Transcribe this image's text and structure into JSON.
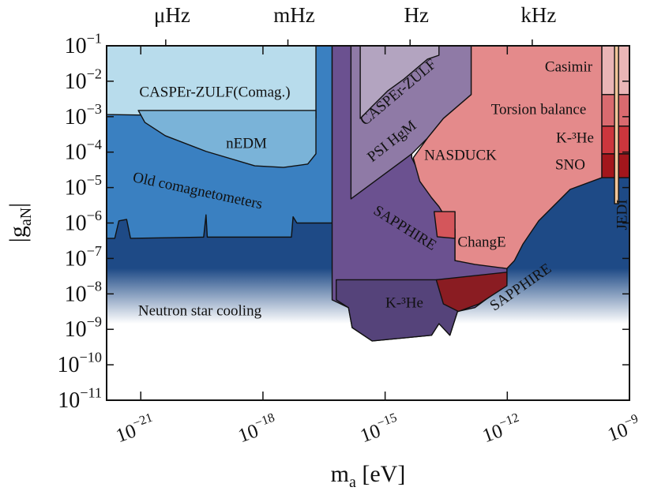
{
  "chart_data": {
    "type": "area",
    "x_label": "ma [eV]",
    "y_label": "|gaN|",
    "xscale": "log",
    "yscale": "log",
    "xlim": [
      1.45e-22,
      1e-09
    ],
    "ylim": [
      1e-11,
      0.1
    ],
    "xticks": [
      {
        "value": 1e-21,
        "label": "10−21"
      },
      {
        "value": 1e-18,
        "label": "10−18"
      },
      {
        "value": 1e-15,
        "label": "10−15"
      },
      {
        "value": 1e-12,
        "label": "10−12"
      },
      {
        "value": 1e-09,
        "label": "10−9"
      }
    ],
    "x2ticks": [
      {
        "value": 4.1e-21,
        "label": "μHz"
      },
      {
        "value": 4.1e-18,
        "label": "mHz"
      },
      {
        "value": 4.1e-15,
        "label": "Hz"
      },
      {
        "value": 4.1e-12,
        "label": "kHz"
      }
    ],
    "yticks": [
      {
        "value": 0.1,
        "label": "10−1"
      },
      {
        "value": 0.01,
        "label": "10−2"
      },
      {
        "value": 0.001,
        "label": "10−3"
      },
      {
        "value": 0.0001,
        "label": "10−4"
      },
      {
        "value": 1e-05,
        "label": "10−5"
      },
      {
        "value": 1e-06,
        "label": "10−6"
      },
      {
        "value": 1e-07,
        "label": "10−7"
      },
      {
        "value": 1e-08,
        "label": "10−8"
      },
      {
        "value": 1e-09,
        "label": "10−9"
      },
      {
        "value": 1e-10,
        "label": "10−10"
      },
      {
        "value": 1e-11,
        "label": "10−11"
      }
    ],
    "regions": [
      {
        "name": "Neutron star cooling",
        "color": "#1e4a86",
        "fade": true,
        "x": [
          1.45e-22,
          1e-09,
          1e-09,
          1.45e-22
        ],
        "y": [
          1.3e-05,
          1.9e-05,
          1.45e-09,
          1.45e-09
        ]
      },
      {
        "name": "Old comagnetometers",
        "color": "#3a80c1",
        "x": [
          1.45e-22,
          5e-17,
          5e-17,
          6.8e-18,
          5.5e-18,
          5e-18,
          4.3e-20,
          4e-20,
          3.5e-20,
          5.6e-22,
          4.5e-22,
          2.9e-22,
          2.3e-22,
          1.45e-22
        ],
        "y": [
          0.1,
          0.1,
          1e-06,
          1e-06,
          1.5e-06,
          4e-07,
          4e-07,
          1.7e-06,
          4e-07,
          3.7e-07,
          1.26e-06,
          1.15e-06,
          3.7e-07,
          3.7e-07
        ]
      },
      {
        "name": "CASPEr-ZULF(Comag.)",
        "color": "#b8dcec",
        "x": [
          1.45e-22,
          2e-17,
          2e-17,
          4e-19,
          1.45e-22
        ],
        "y": [
          0.1,
          0.1,
          0.0009,
          0.001,
          0.00115
        ]
      },
      {
        "name": "nEDM",
        "color": "#7ab3d8",
        "x": [
          8.7e-22,
          2e-17,
          2e-17,
          1.26e-17,
          3.2e-18,
          6.3e-19,
          4e-20,
          4e-21,
          1.26e-21
        ],
        "y": [
          0.0015,
          0.0015,
          9e-05,
          4.6e-05,
          3.7e-05,
          4.1e-05,
          0.000105,
          0.00029,
          0.00069
        ]
      },
      {
        "name": "SAPPHIRE",
        "color": "#6b5190",
        "x": [
          5e-17,
          4.5e-15,
          4.5e-15,
          1.38e-14,
          2.1e-14,
          5.2e-14,
          5.2e-14,
          9.8e-13,
          9.8e-13,
          1.6e-13,
          6e-14,
          3.9e-14,
          2.1e-14,
          1.38e-14,
          4.8e-16,
          1.55e-16,
          1.26e-16,
          5e-17
        ],
        "y": [
          0.1,
          0.1,
          6.9e-05,
          5.2e-06,
          2.9e-06,
          2.5e-06,
          8.7e-08,
          6.8e-08,
          1.9e-08,
          4.1e-09,
          3.2e-09,
          6.8e-10,
          1.45e-09,
          6.8e-10,
          4.7e-10,
          1.12e-09,
          4.1e-09,
          6.8e-09
        ]
      },
      {
        "name": "K-³He",
        "color": "#55437a",
        "x": [
          6.3e-17,
          6e-14,
          6e-14,
          3.9e-14,
          2.1e-14,
          1.38e-14,
          4.8e-16,
          1.55e-16,
          1.26e-16,
          6.3e-17
        ],
        "y": [
          2.5e-08,
          2.5e-08,
          3.2e-09,
          6.8e-10,
          1.45e-09,
          6.8e-10,
          4.7e-10,
          1.12e-09,
          4.1e-09,
          6.8e-09
        ]
      },
      {
        "name": "PSI HgM",
        "color": "#8f7aa6",
        "x": [
          1.45e-16,
          1.3e-13,
          1.3e-13,
          2.7e-14,
          1.1e-14,
          4.5e-15,
          1.45e-16
        ],
        "y": [
          0.1,
          0.1,
          0.0042,
          0.00089,
          0.00025,
          8.9e-05,
          4.8e-06
        ]
      },
      {
        "name": "CASPEr-ZULF",
        "color": "#b3a4c0",
        "x": [
          2.45e-16,
          2.1e-14,
          2.1e-14,
          1.1e-14,
          2.9e-15,
          1.17e-15,
          4.8e-16,
          2.45e-16
        ],
        "y": [
          0.1,
          0.1,
          0.054,
          0.042,
          0.0115,
          0.0054,
          0.00195,
          0.00089
        ]
      },
      {
        "name": "NASDUCK",
        "color": "#e48a8b",
        "x": [
          1.3e-13,
          2.1e-10,
          2.1e-10,
          3.5e-11,
          5.9e-12,
          2.4e-12,
          1.5e-12,
          9.8e-13,
          1.6e-13,
          5.2e-14,
          5.2e-14,
          3.4e-14,
          2.1e-14,
          1.38e-14,
          7.1e-15,
          4.9e-15,
          1.1e-14,
          2.7e-14,
          1.3e-13
        ],
        "y": [
          0.1,
          0.1,
          1.9e-05,
          8.9e-06,
          1.15e-06,
          2.5e-07,
          8.7e-08,
          5.2e-08,
          6.8e-08,
          8.7e-08,
          6.8e-07,
          1.15e-06,
          2.9e-06,
          5.2e-06,
          1.5e-05,
          6.9e-05,
          0.00025,
          0.00089,
          0.0042
        ]
      },
      {
        "name": "ChangE",
        "color": "#d4565b",
        "x": [
          1.6e-14,
          5.2e-14,
          5.2e-14,
          1.9e-14
        ],
        "y": [
          2.1e-06,
          2.1e-06,
          3.7e-07,
          4.1e-07
        ]
      },
      {
        "name": "SAPPHIRE",
        "color": "#8a1c22",
        "x": [
          1.8e-14,
          9.8e-13,
          9.8e-13,
          2e-13,
          6.3e-14,
          2.7e-14
        ],
        "y": [
          2.5e-08,
          4.1e-08,
          1.7e-08,
          5.2e-09,
          3.2e-09,
          5.2e-09
        ]
      },
      {
        "name": "Casimir",
        "color": "#eab5b6",
        "x": [
          2.1e-10,
          1e-09,
          1e-09,
          2.1e-10
        ],
        "y": [
          0.1,
          0.1,
          0.0042,
          0.0042
        ]
      },
      {
        "name": "Torsion balance",
        "color": "#d96a6f",
        "x": [
          2.1e-10,
          1e-09,
          1e-09,
          2.1e-10
        ],
        "y": [
          0.0042,
          0.0042,
          0.00054,
          0.00054
        ]
      },
      {
        "name": "K-³He",
        "color": "#cc363d",
        "x": [
          2.1e-10,
          1e-09,
          1e-09,
          2.1e-10
        ],
        "y": [
          0.00054,
          0.00054,
          8.9e-05,
          8.9e-05
        ]
      },
      {
        "name": "SNO",
        "color": "#a3161c",
        "x": [
          2.1e-10,
          1e-09,
          1e-09,
          2.1e-10
        ],
        "y": [
          8.9e-05,
          8.9e-05,
          1.9e-05,
          1.9e-05
        ]
      },
      {
        "name": "JEDI",
        "color": "#f2c69a",
        "x": [
          4.3e-10,
          5.4e-10,
          5.4e-10,
          4.3e-10
        ],
        "y": [
          0.1,
          0.1,
          3.5e-06,
          3.5e-06
        ]
      }
    ]
  }
}
